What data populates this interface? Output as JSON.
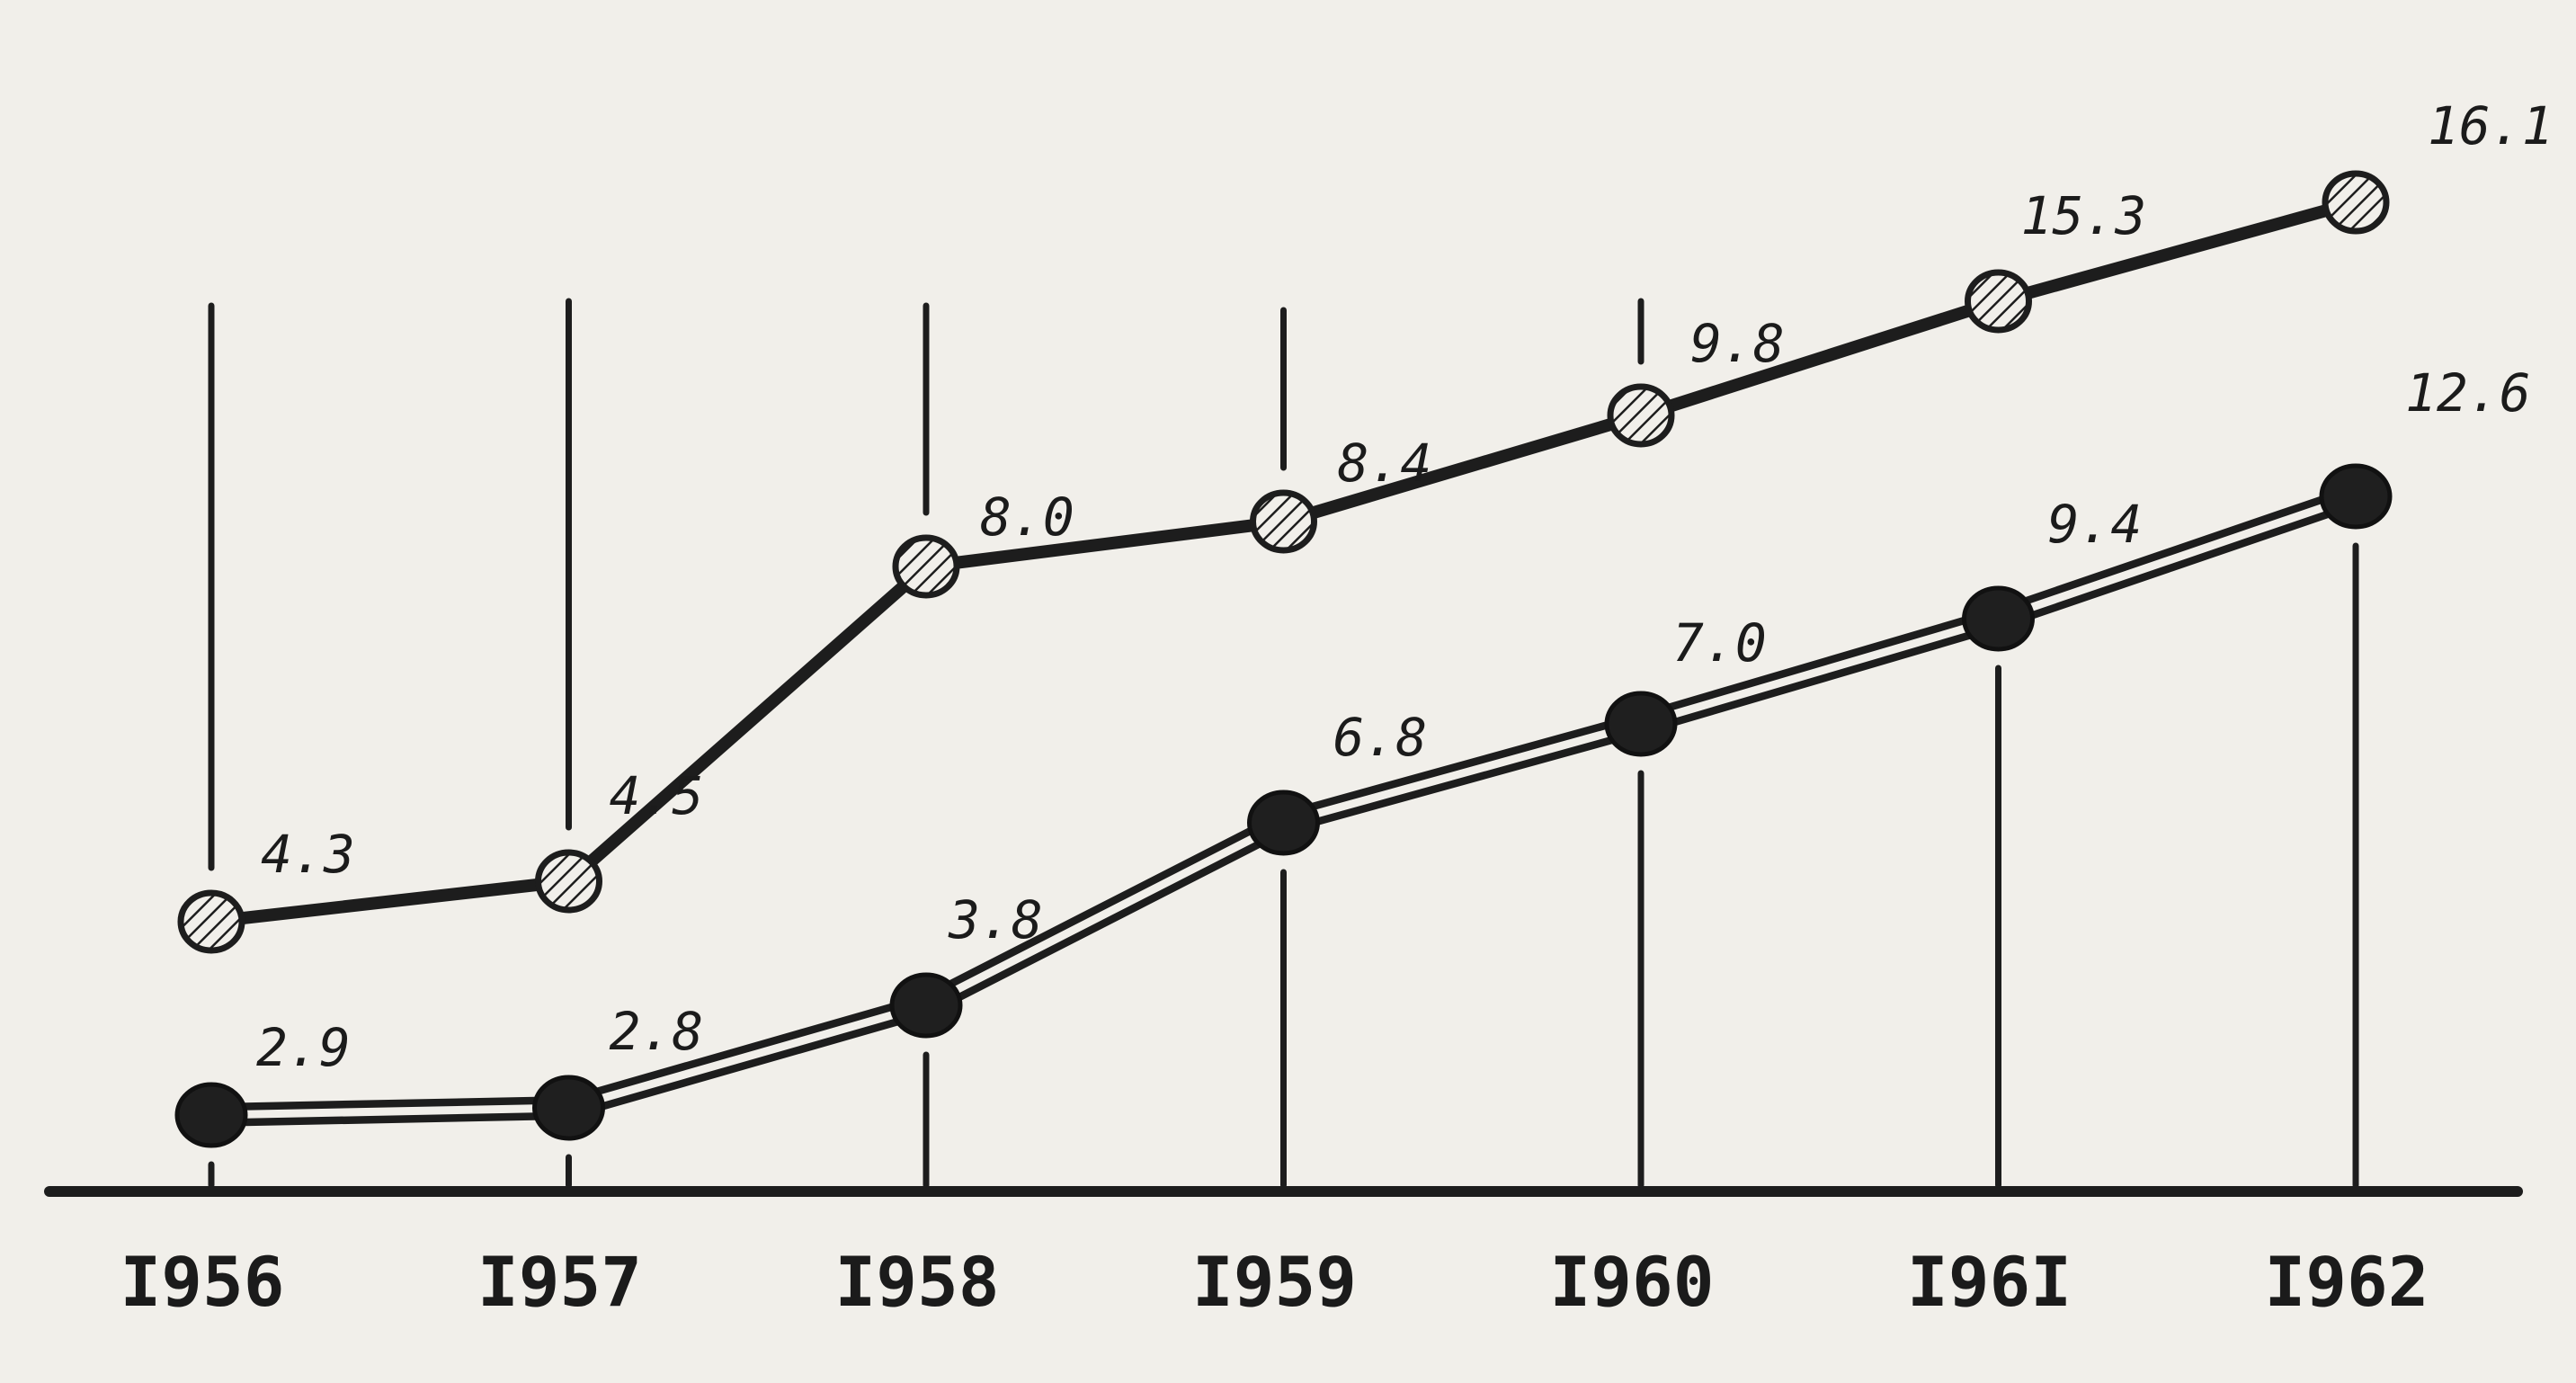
{
  "chart_data": {
    "type": "line",
    "categories": [
      "I956",
      "I957",
      "I958",
      "I959",
      "I960",
      "I96I",
      "I962"
    ],
    "series": [
      {
        "values": [
          4.3,
          4.5,
          8.0,
          8.4,
          9.8,
          15.3,
          16.1
        ],
        "labels": [
          "4.3",
          "4.5",
          "8.0",
          "8.4",
          "9.8",
          "15.3",
          "16.1"
        ],
        "marker": "hatched"
      },
      {
        "values": [
          2.9,
          2.8,
          3.8,
          6.8,
          7.0,
          9.4,
          12.6
        ],
        "labels": [
          "2.9",
          "2.8",
          "3.8",
          "6.8",
          "7.0",
          "9.4",
          "12.6"
        ],
        "marker": "solid"
      }
    ],
    "title": "",
    "xlabel": "",
    "ylabel": "",
    "grid": true,
    "legend": "none",
    "colors": {
      "ink": "#1d1d1d",
      "paper": "#f1efea"
    }
  }
}
